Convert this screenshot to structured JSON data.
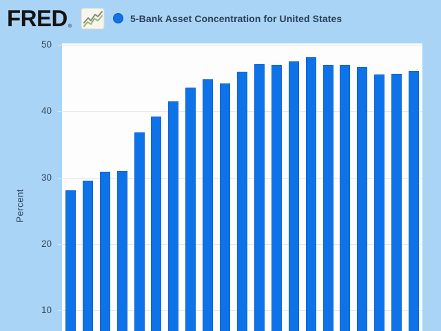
{
  "header": {
    "logo_text": "FRED",
    "registered_mark": "®",
    "legend_marker_color": "#1471e8",
    "series_title": "5-Bank Asset Concentration for United States"
  },
  "y_axis": {
    "label": "Percent",
    "ticks": [
      "50",
      "40",
      "30",
      "20",
      "10"
    ]
  },
  "chart_data": {
    "type": "bar",
    "title": "5-Bank Asset Concentration for United States",
    "xlabel": "",
    "ylabel": "Percent",
    "x_labels_visible": false,
    "values": [
      28.1,
      29.5,
      30.9,
      31.0,
      36.8,
      39.2,
      41.5,
      43.6,
      44.8,
      44.2,
      46.0,
      47.1,
      47.0,
      47.5,
      48.1,
      47.0,
      47.0,
      46.7,
      45.5,
      45.6,
      46.1
    ],
    "y_ticks": [
      10,
      20,
      30,
      40,
      50
    ],
    "ylim_visible": [
      7,
      50
    ],
    "grid": true,
    "legend_position": "top",
    "bar_color": "#0e72e9",
    "bar_border_color": "#1565cf",
    "plot_background": "#fdfdfe",
    "page_background": "#a9d4f6",
    "gridline_color": "#e6e6e6"
  }
}
